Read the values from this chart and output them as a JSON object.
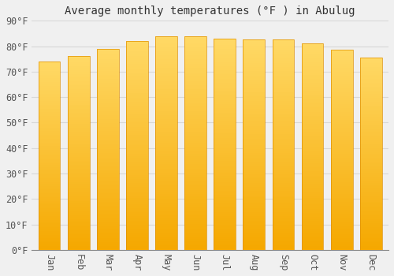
{
  "title": "Average monthly temperatures (°F ) in Abulug",
  "months": [
    "Jan",
    "Feb",
    "Mar",
    "Apr",
    "May",
    "Jun",
    "Jul",
    "Aug",
    "Sep",
    "Oct",
    "Nov",
    "Dec"
  ],
  "values": [
    74,
    76,
    79,
    82,
    84,
    84,
    83,
    82.5,
    82.5,
    81,
    78.5,
    75.5
  ],
  "bar_color_bottom": "#F5A800",
  "bar_color_top": "#FFD966",
  "bar_color_edge": "#E09000",
  "background_color": "#f0f0f0",
  "plot_bg_color": "#f0f0f0",
  "ylim": [
    0,
    90
  ],
  "ytick_step": 10,
  "title_fontsize": 10,
  "tick_fontsize": 8.5,
  "grid_color": "#d8d8d8",
  "bar_width": 0.75
}
